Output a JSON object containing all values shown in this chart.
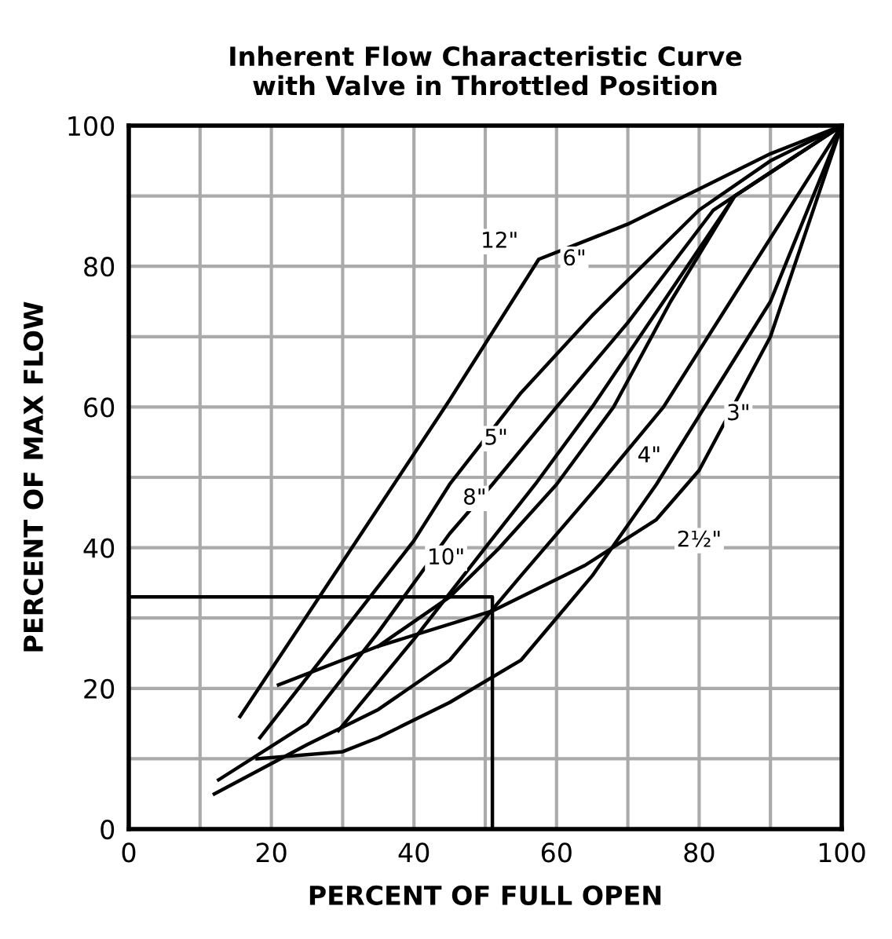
{
  "chart_data": {
    "type": "line",
    "title": "Inherent Flow Characteristic Curve\nwith Valve in Throttled Position",
    "xlabel": "PERCENT OF FULL OPEN",
    "ylabel": "PERCENT OF MAX FLOW",
    "xlim": [
      0,
      100
    ],
    "ylim": [
      0,
      100
    ],
    "xticks": [
      0,
      {
        "value": 10,
        "label": null
      },
      20,
      {
        "value": 30,
        "label": null
      },
      40,
      {
        "value": 50,
        "label": null
      },
      60,
      {
        "value": 70,
        "label": null
      },
      80,
      {
        "value": 90,
        "label": null
      },
      100
    ],
    "yticks": [
      0,
      {
        "value": 10,
        "label": null
      },
      20,
      {
        "value": 30,
        "label": null
      },
      40,
      {
        "value": 50,
        "label": null
      },
      60,
      {
        "value": 70,
        "label": null
      },
      80,
      {
        "value": 90,
        "label": null
      },
      100
    ],
    "grid": true,
    "legend": false,
    "marker": "none",
    "line_style": "solid",
    "series": [
      {
        "color": "#000000",
        "x": [
          15.6,
          30,
          45,
          57.5,
          70,
          80,
          90,
          100
        ],
        "values": [
          16,
          38,
          61,
          81,
          86,
          91,
          96,
          100
        ]
      },
      {
        "color": "#000000",
        "x": [
          18.4,
          30,
          40,
          45,
          55,
          65,
          80,
          90,
          100
        ],
        "values": [
          13,
          28,
          41,
          49,
          62,
          73,
          88,
          95,
          100
        ]
      },
      {
        "color": "#000000",
        "x": [
          12.6,
          25,
          35,
          45,
          51,
          60,
          70,
          82,
          100
        ],
        "values": [
          7,
          15,
          28,
          42,
          49,
          60,
          72,
          88,
          100
        ]
      },
      {
        "color": "#000000",
        "x": [
          29.4,
          40,
          50,
          57,
          65,
          75,
          85,
          100
        ],
        "values": [
          14,
          27,
          40,
          49,
          60,
          75,
          90,
          100
        ]
      },
      {
        "color": "#000000",
        "x": [
          35,
          45,
          52,
          60,
          68,
          76,
          85,
          100
        ],
        "values": [
          26,
          33,
          40,
          49,
          60,
          75,
          90,
          100
        ]
      },
      {
        "color": "#000000",
        "x": [
          12,
          25,
          35,
          45,
          55,
          66,
          75,
          85,
          100
        ],
        "values": [
          5,
          12,
          17,
          24,
          36,
          49,
          60,
          76,
          100
        ]
      },
      {
        "color": "#000000",
        "x": [
          18,
          30,
          35,
          45,
          55,
          65,
          74,
          82,
          90,
          100
        ],
        "values": [
          10,
          11,
          13,
          18,
          24,
          36,
          49,
          62,
          75,
          100
        ]
      },
      {
        "color": "#000000",
        "x": [
          21,
          35,
          51,
          64,
          74,
          80,
          90,
          100
        ],
        "values": [
          20.5,
          26,
          31,
          37.5,
          44,
          51,
          70,
          100
        ]
      },
      {
        "color": "#000000",
        "x": [
          0,
          51,
          51
        ],
        "values": [
          33,
          33,
          0
        ]
      }
    ],
    "annotations": [
      "12\"",
      "6\"",
      "5\"",
      "8\"",
      "10\"",
      "4\"",
      "3\"",
      "2½\""
    ]
  }
}
